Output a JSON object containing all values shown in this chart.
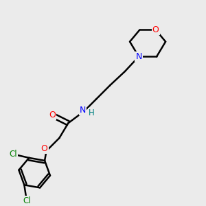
{
  "bg_color": "#ebebeb",
  "bond_color": "#000000",
  "bond_width": 1.8,
  "atom_colors": {
    "O": "#ff0000",
    "N": "#0000ff",
    "Cl": "#008000",
    "H": "#008080",
    "C": "#000000"
  },
  "figsize": [
    3.0,
    3.0
  ],
  "dpi": 100,
  "xlim": [
    0,
    10
  ],
  "ylim": [
    0,
    10
  ]
}
